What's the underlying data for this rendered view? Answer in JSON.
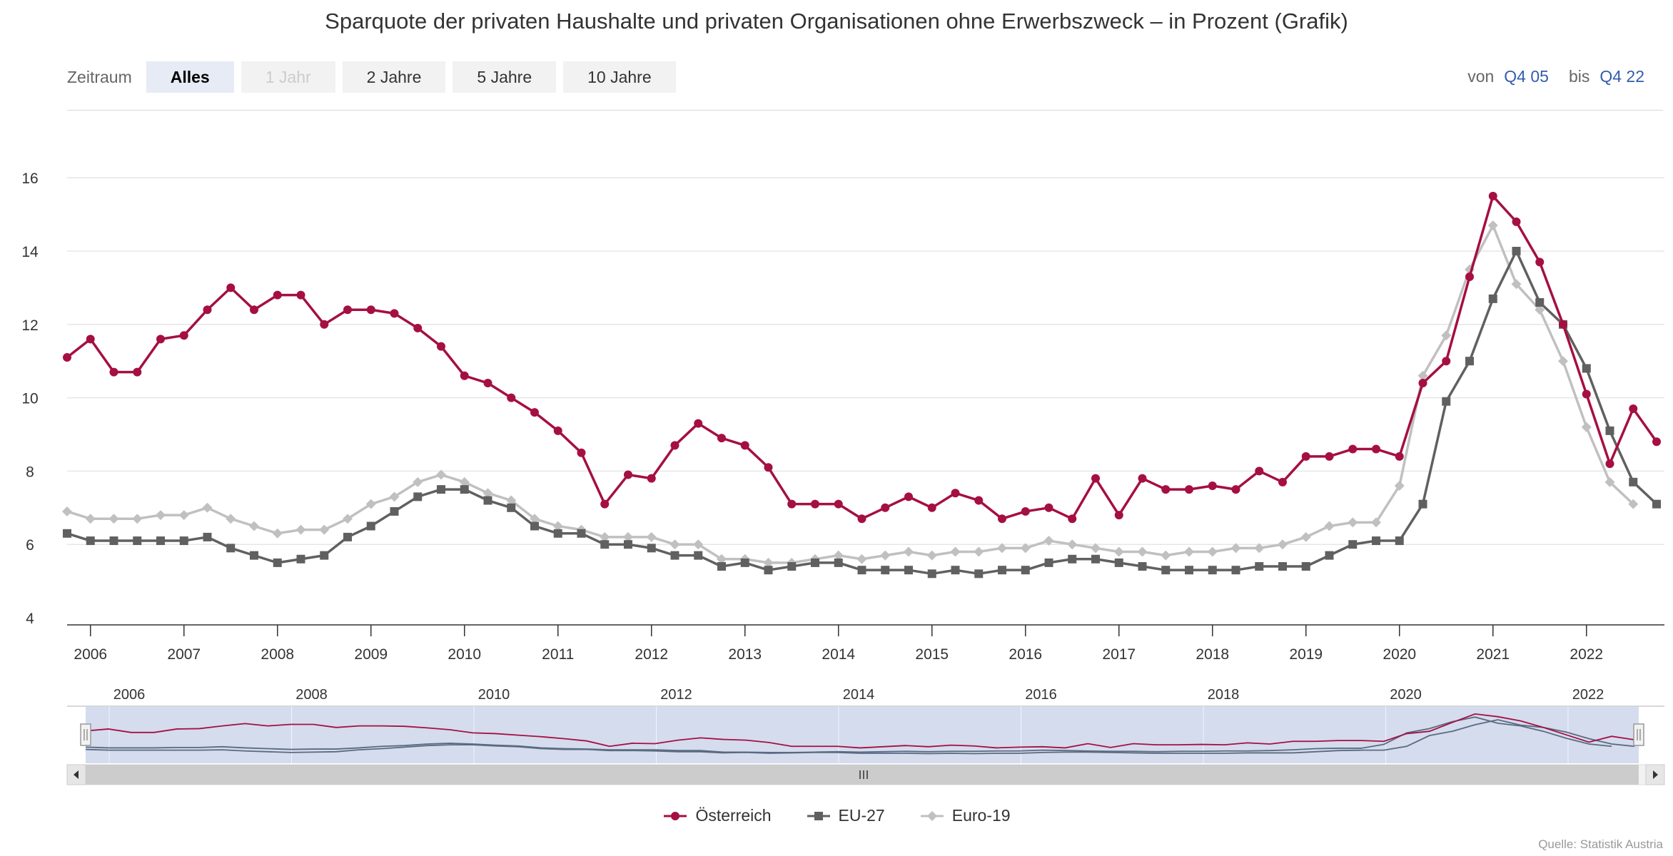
{
  "title": "Sparquote der privaten Haushalte und privaten Organisationen ohne Erwerbszweck – in Prozent (Grafik)",
  "range_selector": {
    "label": "Zeitraum",
    "buttons": [
      {
        "label": "Alles",
        "state": "active"
      },
      {
        "label": "1 Jahr",
        "state": "disabled"
      },
      {
        "label": "2 Jahre",
        "state": "normal"
      },
      {
        "label": "5 Jahre",
        "state": "normal"
      },
      {
        "label": "10 Jahre",
        "state": "normal"
      }
    ]
  },
  "date_range": {
    "from_label": "von",
    "from_value": "Q4 05",
    "to_label": "bis",
    "to_value": "Q4 22"
  },
  "source": "Quelle: Statistik Austria",
  "navigator": {
    "tick_labels": [
      "2006",
      "2008",
      "2010",
      "2012",
      "2014",
      "2016",
      "2018",
      "2020",
      "2022"
    ],
    "handle_icon": "grip-icon",
    "scroll_left_icon": "arrow-left-icon",
    "scroll_right_icon": "arrow-right-icon",
    "mask_color": "#ccd6eb"
  },
  "chart_data": {
    "type": "line",
    "x": [
      "Q4 05",
      "Q1 06",
      "Q2 06",
      "Q3 06",
      "Q4 06",
      "Q1 07",
      "Q2 07",
      "Q3 07",
      "Q4 07",
      "Q1 08",
      "Q2 08",
      "Q3 08",
      "Q4 08",
      "Q1 09",
      "Q2 09",
      "Q3 09",
      "Q4 09",
      "Q1 10",
      "Q2 10",
      "Q3 10",
      "Q4 10",
      "Q1 11",
      "Q2 11",
      "Q3 11",
      "Q4 11",
      "Q1 12",
      "Q2 12",
      "Q3 12",
      "Q4 12",
      "Q1 13",
      "Q2 13",
      "Q3 13",
      "Q4 13",
      "Q1 14",
      "Q2 14",
      "Q3 14",
      "Q4 14",
      "Q1 15",
      "Q2 15",
      "Q3 15",
      "Q4 15",
      "Q1 16",
      "Q2 16",
      "Q3 16",
      "Q4 16",
      "Q1 17",
      "Q2 17",
      "Q3 17",
      "Q4 17",
      "Q1 18",
      "Q2 18",
      "Q3 18",
      "Q4 18",
      "Q1 19",
      "Q2 19",
      "Q3 19",
      "Q4 19",
      "Q1 20",
      "Q2 20",
      "Q3 20",
      "Q4 20",
      "Q1 21",
      "Q2 21",
      "Q3 21",
      "Q4 21",
      "Q1 22",
      "Q2 22",
      "Q3 22",
      "Q4 22"
    ],
    "x_tick_labels": [
      "2006",
      "2007",
      "2008",
      "2009",
      "2010",
      "2011",
      "2012",
      "2013",
      "2014",
      "2015",
      "2016",
      "2017",
      "2018",
      "2019",
      "2020",
      "2021",
      "2022"
    ],
    "y_tick_labels": [
      "4",
      "6",
      "8",
      "10",
      "12",
      "14",
      "16"
    ],
    "ylim": [
      4,
      17.5
    ],
    "grid": true,
    "legend_position": "bottom-center",
    "series": [
      {
        "name": "Österreich",
        "color": "#a50f41",
        "marker": "circle",
        "values": [
          11.1,
          11.6,
          10.7,
          10.7,
          11.6,
          11.7,
          12.4,
          13.0,
          12.4,
          12.8,
          12.8,
          12.0,
          12.4,
          12.4,
          12.3,
          11.9,
          11.4,
          10.6,
          10.4,
          10.0,
          9.6,
          9.1,
          8.5,
          7.1,
          7.9,
          7.8,
          8.7,
          9.3,
          8.9,
          8.7,
          8.1,
          7.1,
          7.1,
          7.1,
          6.7,
          7.0,
          7.3,
          7.0,
          7.4,
          7.2,
          6.7,
          6.9,
          7.0,
          6.7,
          7.8,
          6.8,
          7.8,
          7.5,
          7.5,
          7.6,
          7.5,
          8.0,
          7.7,
          8.4,
          8.4,
          8.6,
          8.6,
          8.4,
          10.4,
          11.0,
          13.3,
          15.5,
          14.8,
          13.7,
          12.0,
          10.1,
          8.2,
          9.7,
          8.8
        ]
      },
      {
        "name": "EU-27",
        "color": "#606060",
        "marker": "square",
        "values": [
          6.3,
          6.1,
          6.1,
          6.1,
          6.1,
          6.1,
          6.2,
          5.9,
          5.7,
          5.5,
          5.6,
          5.7,
          6.2,
          6.5,
          6.9,
          7.3,
          7.5,
          7.5,
          7.2,
          7.0,
          6.5,
          6.3,
          6.3,
          6.0,
          6.0,
          5.9,
          5.7,
          5.7,
          5.4,
          5.5,
          5.3,
          5.4,
          5.5,
          5.5,
          5.3,
          5.3,
          5.3,
          5.2,
          5.3,
          5.2,
          5.3,
          5.3,
          5.5,
          5.6,
          5.6,
          5.5,
          5.4,
          5.3,
          5.3,
          5.3,
          5.3,
          5.4,
          5.4,
          5.4,
          5.7,
          6.0,
          6.1,
          6.1,
          7.1,
          9.9,
          11.0,
          12.7,
          14.0,
          12.6,
          12.0,
          10.8,
          9.1,
          7.7,
          7.1
        ]
      },
      {
        "name": "Euro-19",
        "color": "#c0c0c0",
        "marker": "diamond",
        "values": [
          6.9,
          6.7,
          6.7,
          6.7,
          6.8,
          6.8,
          7.0,
          6.7,
          6.5,
          6.3,
          6.4,
          6.4,
          6.7,
          7.1,
          7.3,
          7.7,
          7.9,
          7.7,
          7.4,
          7.2,
          6.7,
          6.5,
          6.4,
          6.2,
          6.2,
          6.2,
          6.0,
          6.0,
          5.6,
          5.6,
          5.5,
          5.5,
          5.6,
          5.7,
          5.6,
          5.7,
          5.8,
          5.7,
          5.8,
          5.8,
          5.9,
          5.9,
          6.1,
          6.0,
          5.9,
          5.8,
          5.8,
          5.7,
          5.8,
          5.8,
          5.9,
          5.9,
          6.0,
          6.2,
          6.5,
          6.6,
          6.6,
          7.6,
          10.6,
          11.7,
          13.5,
          14.7,
          13.1,
          12.4,
          11.0,
          9.2,
          7.7,
          7.1,
          null
        ]
      }
    ]
  }
}
